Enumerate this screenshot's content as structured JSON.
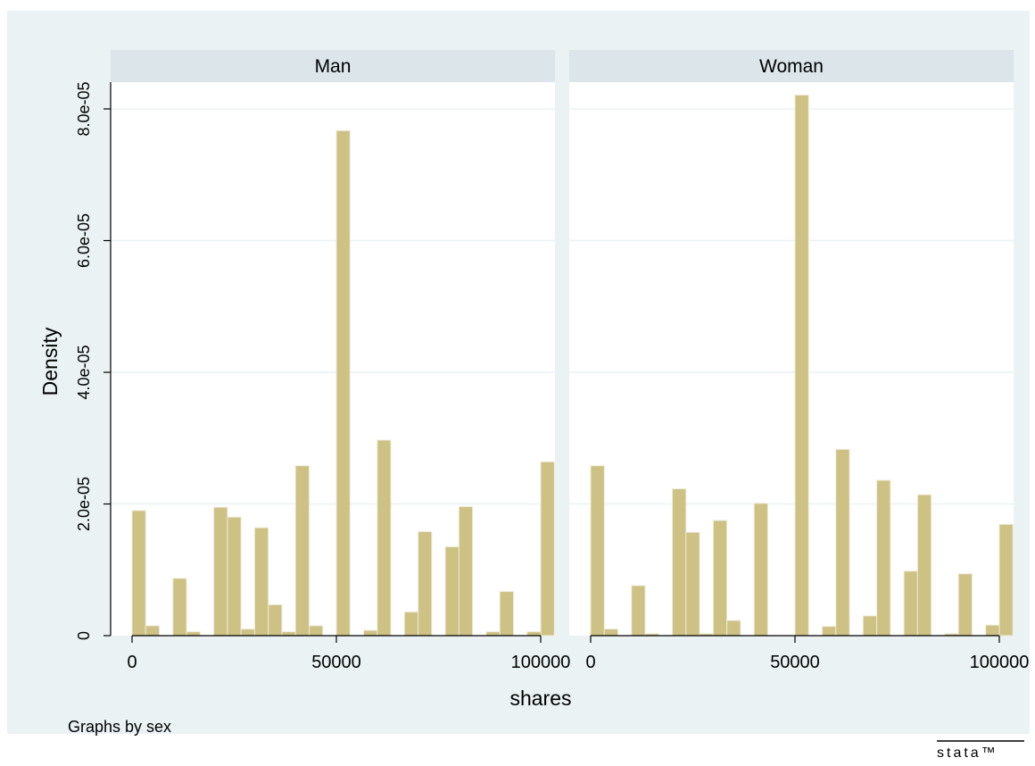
{
  "chart_data": {
    "type": "histogram",
    "panel_by": "sex",
    "note": "Graphs by sex",
    "watermark": "stata™",
    "ylabel": "Density",
    "xlabel": "shares",
    "bin_width": 3333.33,
    "bin_start": 0,
    "xlim": [
      0,
      100000
    ],
    "ylim": [
      0,
      8e-05
    ],
    "y_ticks": [
      {
        "value": 0,
        "label": "0"
      },
      {
        "value": 2e-05,
        "label": "2.0e-05"
      },
      {
        "value": 4e-05,
        "label": "4.0e-05"
      },
      {
        "value": 6e-05,
        "label": "6.0e-05"
      },
      {
        "value": 8e-05,
        "label": "8.0e-05"
      }
    ],
    "x_ticks": [
      {
        "value": 0,
        "label": "0"
      },
      {
        "value": 50000,
        "label": "50000"
      },
      {
        "value": 100000,
        "label": "100000"
      }
    ],
    "grid": true,
    "bar_color": "#cdc183",
    "bar_edge_color": "#efeadb",
    "strip_color": "#dbe5ea",
    "panels": [
      {
        "name": "Man",
        "densities": [
          1.9e-05,
          1.5e-06,
          0,
          8.7e-06,
          6e-07,
          0,
          1.95e-05,
          1.8e-05,
          1e-06,
          1.64e-05,
          4.7e-06,
          6e-07,
          2.58e-05,
          1.5e-06,
          0,
          7.67e-05,
          0,
          8e-07,
          2.97e-05,
          0,
          3.6e-06,
          1.58e-05,
          0,
          1.35e-05,
          1.96e-05,
          0,
          6e-07,
          6.7e-06,
          0,
          6e-07,
          2.64e-05
        ]
      },
      {
        "name": "Woman",
        "densities": [
          2.58e-05,
          1e-06,
          0,
          7.6e-06,
          3e-07,
          0,
          2.23e-05,
          1.57e-05,
          3e-07,
          1.75e-05,
          2.3e-06,
          0,
          2.01e-05,
          0,
          0,
          8.21e-05,
          0,
          1.4e-06,
          2.83e-05,
          0,
          3e-06,
          2.36e-05,
          0,
          9.8e-06,
          2.14e-05,
          0,
          3e-07,
          9.4e-06,
          0,
          1.6e-06,
          1.69e-05
        ]
      }
    ]
  }
}
